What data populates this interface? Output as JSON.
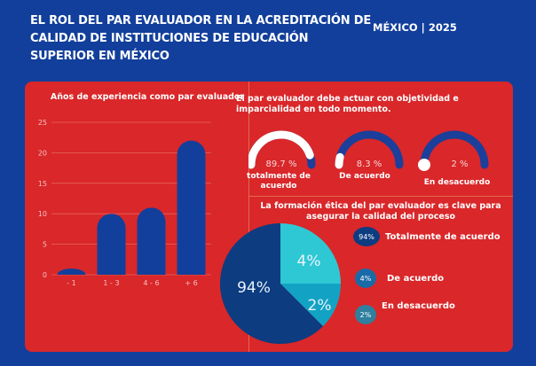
{
  "header": {
    "title_lines": [
      "EL ROL DEL PAR EVALUADOR EN LA ACREDITACIÓN DE",
      "CALIDAD DE INSTITUCIONES DE EDUCACIÓN",
      "SUPERIOR  EN MÉXICO"
    ],
    "meta": "MÉXICO | 2025"
  },
  "colors": {
    "background": "#123f9b",
    "panel": "#d9272a",
    "bar": "#123f9b",
    "gauge_track": "#1b3f9a",
    "gauge_fill": "#ffffff",
    "pie_dark": "#0d3c80",
    "pie_light": "#2ec8d4",
    "pie_mid": "#12a3c4"
  },
  "chart_data": [
    {
      "type": "bar",
      "title": "Años de experiencia como par evaluador",
      "categories": [
        "- 1",
        "1 - 3",
        "4 - 6",
        "+ 6"
      ],
      "values": [
        1,
        10,
        11,
        22
      ],
      "ylim": [
        0,
        25
      ],
      "yticks": [
        "0",
        "5",
        "10",
        "15",
        "20",
        "25"
      ],
      "grid": true,
      "xlabel": "",
      "ylabel": ""
    },
    {
      "type": "gauge",
      "title": "El par evaluador debe actuar con objetividad e imparcialidad en todo momento.",
      "items": [
        {
          "label_lines": [
            "totalmente de",
            "acuerdo"
          ],
          "value": 89.7,
          "display": "89.7 %"
        },
        {
          "label_lines": [
            "De acuerdo"
          ],
          "value": 8.3,
          "display": "8.3 %"
        },
        {
          "label_lines": [
            "En desacuerdo"
          ],
          "value": 2,
          "display": "2 %"
        }
      ]
    },
    {
      "type": "pie",
      "title_lines": [
        "La formación ética del par evaluador es clave para",
        "asegurar la calidad del proceso"
      ],
      "slices": [
        {
          "label": "Totalmente de acuerdo",
          "value": 94,
          "display": "94%"
        },
        {
          "label": "De acuerdo",
          "value": 4,
          "display": "4%"
        },
        {
          "label": "En desacuerdo",
          "value": 2,
          "display": "2%"
        }
      ],
      "legend": "right"
    }
  ]
}
